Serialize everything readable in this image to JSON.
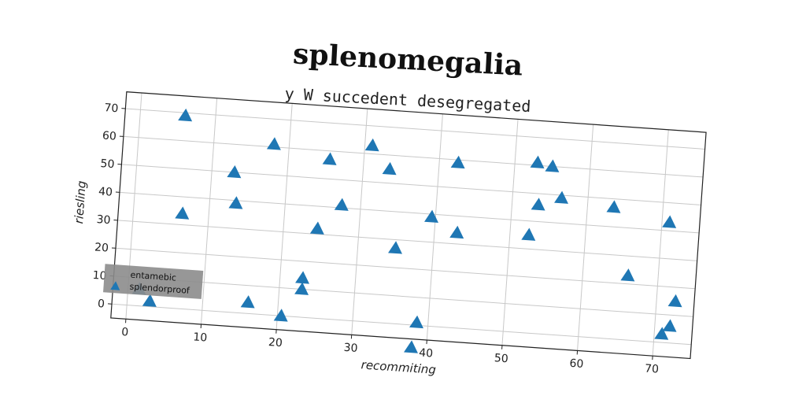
{
  "chart_data": {
    "type": "scatter",
    "title": "splenomegalia",
    "subtitle": "y W succedent desegregated",
    "xlabel": "recommiting",
    "ylabel": "riesling",
    "xlim": [
      -2,
      75
    ],
    "ylim": [
      -5,
      76
    ],
    "xticks": [
      0,
      10,
      20,
      30,
      40,
      50,
      60,
      70
    ],
    "yticks": [
      0,
      10,
      20,
      30,
      40,
      50,
      60,
      70
    ],
    "grid": true,
    "legend": {
      "position": "lower-left",
      "entries": [
        "entamebic",
        "splendorproof"
      ]
    },
    "marker": "triangle",
    "color": "#1f77b4",
    "points": [
      {
        "x": 6,
        "y": 69
      },
      {
        "x": 6.5,
        "y": 34
      },
      {
        "x": 13,
        "y": 50
      },
      {
        "x": 13.5,
        "y": 39
      },
      {
        "x": 18,
        "y": 61
      },
      {
        "x": 16,
        "y": 4
      },
      {
        "x": 20.5,
        "y": 0
      },
      {
        "x": 23,
        "y": 14
      },
      {
        "x": 23,
        "y": 10
      },
      {
        "x": 24.5,
        "y": 32
      },
      {
        "x": 25.5,
        "y": 57
      },
      {
        "x": 27.5,
        "y": 41
      },
      {
        "x": 31,
        "y": 63
      },
      {
        "x": 33.5,
        "y": 55
      },
      {
        "x": 35,
        "y": 27
      },
      {
        "x": 38,
        "y": -8
      },
      {
        "x": 38.5,
        "y": 1
      },
      {
        "x": 39.5,
        "y": 39
      },
      {
        "x": 42.5,
        "y": 59
      },
      {
        "x": 43,
        "y": 34
      },
      {
        "x": 52.5,
        "y": 35
      },
      {
        "x": 53,
        "y": 61
      },
      {
        "x": 53.5,
        "y": 46
      },
      {
        "x": 55,
        "y": 60
      },
      {
        "x": 56.5,
        "y": 49
      },
      {
        "x": 63.5,
        "y": 47
      },
      {
        "x": 66,
        "y": 23
      },
      {
        "x": 71,
        "y": 43
      },
      {
        "x": 71,
        "y": 3
      },
      {
        "x": 72,
        "y": 6
      },
      {
        "x": 72.5,
        "y": 15
      },
      {
        "x": 1.5,
        "y": 6
      },
      {
        "x": 3,
        "y": 2
      }
    ]
  }
}
